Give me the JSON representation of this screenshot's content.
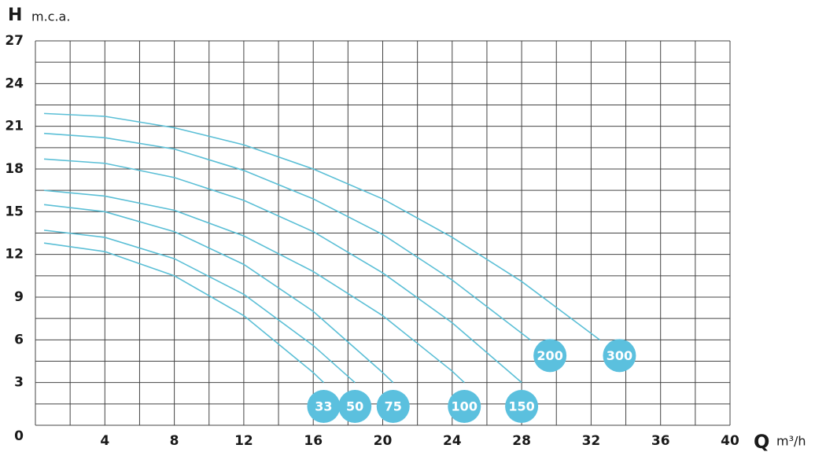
{
  "chart_data": {
    "type": "line",
    "y_label": "H",
    "y_unit": "m.c.a.",
    "x_label": "Q",
    "x_unit": "m³/h",
    "xlim": [
      0,
      40
    ],
    "ylim": [
      0,
      27
    ],
    "xticks": [
      4,
      8,
      12,
      16,
      20,
      24,
      28,
      32,
      36,
      40
    ],
    "yticks": [
      0,
      3,
      6,
      9,
      12,
      15,
      18,
      21,
      24,
      27
    ],
    "grid": true,
    "minor_grid": true,
    "series": [
      {
        "name": "33",
        "color": "#5bbfd6",
        "x": [
          0.5,
          4,
          8,
          12,
          16,
          16.6
        ],
        "values": [
          12.8,
          12.2,
          10.5,
          7.7,
          3.7,
          3.0
        ]
      },
      {
        "name": "50",
        "color": "#5bbfd6",
        "x": [
          0.5,
          4,
          8,
          12,
          16,
          18.4
        ],
        "values": [
          13.7,
          13.2,
          11.7,
          9.2,
          5.6,
          3.0
        ]
      },
      {
        "name": "75",
        "color": "#5bbfd6",
        "x": [
          0.5,
          4,
          8,
          12,
          16,
          20,
          20.6
        ],
        "values": [
          15.5,
          15.0,
          13.6,
          11.3,
          8.0,
          3.7,
          3.0
        ]
      },
      {
        "name": "100",
        "color": "#5bbfd6",
        "x": [
          0.5,
          4,
          8,
          12,
          16,
          20,
          24,
          24.7
        ],
        "values": [
          16.5,
          16.1,
          15.1,
          13.3,
          10.8,
          7.7,
          3.8,
          3.0
        ]
      },
      {
        "name": "150",
        "color": "#5bbfd6",
        "x": [
          0.5,
          4,
          8,
          12,
          16,
          20,
          24,
          28
        ],
        "values": [
          18.7,
          18.4,
          17.4,
          15.8,
          13.6,
          10.7,
          7.2,
          3.0
        ]
      },
      {
        "name": "200",
        "color": "#5bbfd6",
        "x": [
          0.5,
          4,
          8,
          12,
          16,
          20,
          24,
          28.5
        ],
        "values": [
          20.5,
          20.2,
          19.4,
          17.9,
          15.9,
          13.4,
          10.2,
          6.0
        ]
      },
      {
        "name": "300",
        "color": "#5bbfd6",
        "x": [
          0.5,
          4,
          8,
          12,
          16,
          20,
          24,
          28,
          32.5
        ],
        "values": [
          21.9,
          21.7,
          20.9,
          19.7,
          18.0,
          15.9,
          13.2,
          10.1,
          6.0
        ]
      }
    ]
  }
}
